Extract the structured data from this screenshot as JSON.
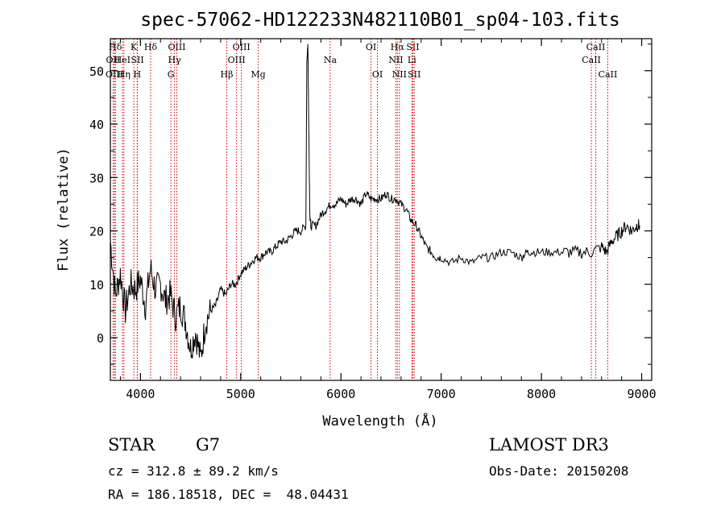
{
  "chart_data": {
    "type": "line",
    "title": "spec-57062-HD122233N482110B01_sp04-103.fits",
    "xlabel": "Wavelength (Å)",
    "ylabel": "Flux (relative)",
    "xlim": [
      3700,
      9100
    ],
    "ylim": [
      -8,
      56
    ],
    "xticks": [
      4000,
      5000,
      6000,
      7000,
      8000,
      9000
    ],
    "yticks": [
      0,
      10,
      20,
      30,
      40,
      50
    ],
    "line_color": "#000000",
    "marker_color": "#cc0000",
    "series": [
      {
        "name": "flux",
        "x": [
          3700,
          3750,
          3800,
          3850,
          3900,
          3950,
          4000,
          4050,
          4100,
          4150,
          4200,
          4250,
          4300,
          4350,
          4400,
          4450,
          4500,
          4550,
          4600,
          4650,
          4700,
          4750,
          4800,
          4850,
          4900,
          4950,
          5000,
          5050,
          5100,
          5150,
          5200,
          5250,
          5300,
          5350,
          5400,
          5450,
          5500,
          5550,
          5600,
          5650,
          5660,
          5670,
          5680,
          5690,
          5700,
          5750,
          5800,
          5850,
          5900,
          5950,
          6000,
          6050,
          6100,
          6150,
          6200,
          6250,
          6300,
          6350,
          6400,
          6450,
          6500,
          6550,
          6600,
          6650,
          6700,
          6750,
          6800,
          6850,
          6900,
          6950,
          7000,
          7100,
          7200,
          7300,
          7400,
          7500,
          7600,
          7700,
          7800,
          7850,
          7900,
          8000,
          8100,
          8200,
          8300,
          8400,
          8500,
          8600,
          8650,
          8700,
          8750,
          8800,
          8850,
          8900,
          8950,
          8980
        ],
        "y": [
          18,
          8,
          12,
          5,
          10,
          9,
          11,
          6,
          13,
          9,
          10,
          7,
          8,
          4,
          6,
          3,
          -2,
          1,
          -4,
          3,
          5,
          6,
          9,
          8,
          10,
          10,
          12,
          13,
          14,
          15,
          15,
          16,
          16,
          17,
          18,
          18,
          19,
          20,
          20,
          21,
          52,
          55,
          38,
          23,
          21,
          21,
          23,
          24,
          25,
          25,
          26,
          25,
          26,
          26,
          25,
          27,
          26,
          26,
          26,
          27,
          26,
          26,
          25,
          24,
          22,
          21,
          19,
          17,
          16,
          15,
          15,
          14,
          15,
          14,
          15,
          15,
          16,
          16,
          15,
          16,
          16,
          16,
          16,
          16,
          16,
          16,
          16,
          17,
          16,
          18,
          19,
          20,
          21,
          20,
          21,
          21
        ]
      }
    ],
    "line_markers": [
      {
        "name": "Hδ",
        "x": 3750,
        "row": 1
      },
      {
        "name": "OII",
        "x": 3727,
        "row": 2
      },
      {
        "name": "OIII",
        "x": 3740,
        "row": 3
      },
      {
        "name": "HeI",
        "x": 3820,
        "row": 2
      },
      {
        "name": "Hη",
        "x": 3835,
        "row": 3
      },
      {
        "name": "K",
        "x": 3934,
        "row": 1
      },
      {
        "name": "SII",
        "x": 3970,
        "row": 2
      },
      {
        "name": "H",
        "x": 3968,
        "row": 3
      },
      {
        "name": "Hδ",
        "x": 4102,
        "row": 1
      },
      {
        "name": "OIII",
        "x": 4363,
        "row": 1
      },
      {
        "name": "Hγ",
        "x": 4340,
        "row": 2
      },
      {
        "name": "G",
        "x": 4304,
        "row": 3
      },
      {
        "name": "Hβ",
        "x": 4861,
        "row": 3
      },
      {
        "name": "OIII",
        "x": 5007,
        "row": 1
      },
      {
        "name": "OIII",
        "x": 4959,
        "row": 2
      },
      {
        "name": "Mg",
        "x": 5175,
        "row": 3
      },
      {
        "name": "Na",
        "x": 5893,
        "row": 2
      },
      {
        "name": "OI",
        "x": 6300,
        "row": 1
      },
      {
        "name": "OI",
        "x": 6364,
        "row": 3
      },
      {
        "name": "Hα",
        "x": 6563,
        "row": 1
      },
      {
        "name": "SII",
        "x": 6717,
        "row": 1
      },
      {
        "name": "NII",
        "x": 6548,
        "row": 2
      },
      {
        "name": "Li",
        "x": 6708,
        "row": 2
      },
      {
        "name": "NII",
        "x": 6583,
        "row": 3
      },
      {
        "name": "SII",
        "x": 6731,
        "row": 3
      },
      {
        "name": "CaII",
        "x": 8542,
        "row": 1
      },
      {
        "name": "CaII",
        "x": 8498,
        "row": 2
      },
      {
        "name": "CaII",
        "x": 8662,
        "row": 3
      }
    ]
  },
  "info": {
    "object_class": "STAR",
    "subclass": "G7",
    "survey": "LAMOST DR3",
    "cz": "cz = 312.8 ± 89.2 km/s",
    "obs_date": "Obs-Date: 20150208",
    "coords": "RA = 186.18518, DEC =  48.04431"
  }
}
